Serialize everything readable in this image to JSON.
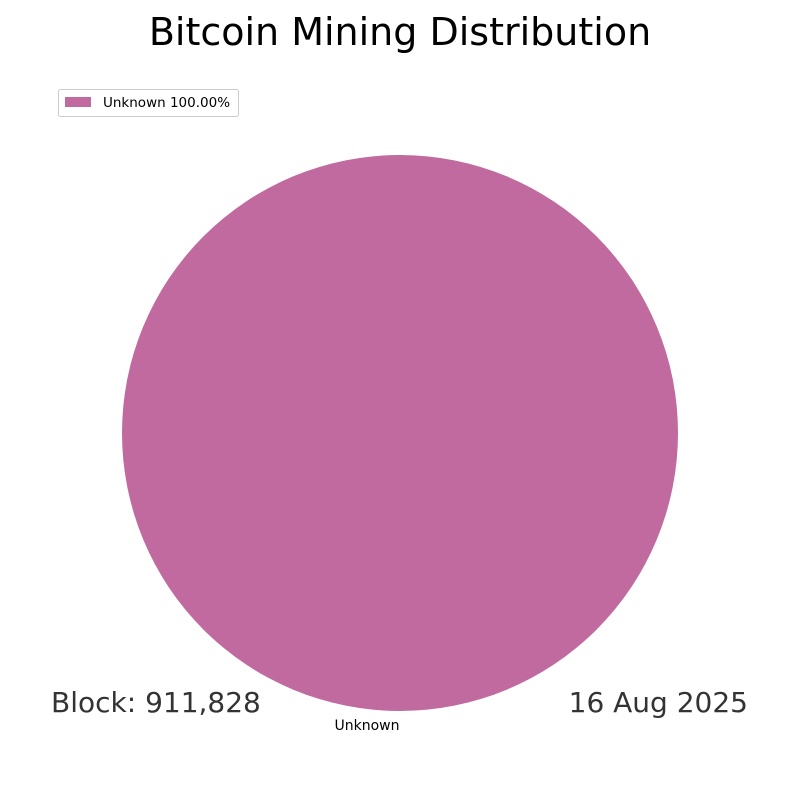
{
  "chart_data": {
    "type": "pie",
    "title": "Bitcoin Mining Distribution",
    "labels": [
      "Unknown"
    ],
    "values": [
      100.0
    ],
    "colors": [
      "#c06a9f"
    ],
    "legend": {
      "placement": "top-left",
      "entries": [
        "Unknown 100.00%"
      ]
    }
  },
  "footer": {
    "block": "Block: 911,828",
    "date": "16 Aug 2025"
  }
}
